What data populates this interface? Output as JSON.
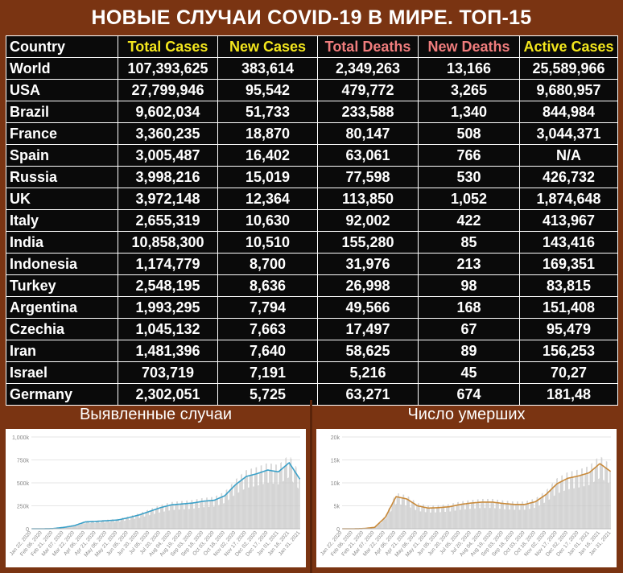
{
  "title": "НОВЫЕ СЛУЧАИ COVID-19 В МИРЕ. ТОП-15",
  "headers": [
    "Country",
    "Total Cases",
    "New Cases",
    "Total Deaths",
    "New Deaths",
    "Active Cases"
  ],
  "header_colors": [
    "#ffffff",
    "#f3e61d",
    "#f3e61d",
    "#f07d7d",
    "#f07d7d",
    "#f3e61d"
  ],
  "rows": [
    [
      "World",
      "107,393,625",
      "383,614",
      "2,349,263",
      "13,166",
      "25,589,966"
    ],
    [
      "USA",
      "27,799,946",
      "95,542",
      "479,772",
      "3,265",
      "9,680,957"
    ],
    [
      "Brazil",
      "9,602,034",
      "51,733",
      "233,588",
      "1,340",
      "844,984"
    ],
    [
      "France",
      "3,360,235",
      "18,870",
      "80,147",
      "508",
      "3,044,371"
    ],
    [
      "Spain",
      "3,005,487",
      "16,402",
      "63,061",
      "766",
      "N/A"
    ],
    [
      "Russia",
      "3,998,216",
      "15,019",
      "77,598",
      "530",
      "426,732"
    ],
    [
      "UK",
      "3,972,148",
      "12,364",
      "113,850",
      "1,052",
      "1,874,648"
    ],
    [
      "Italy",
      "2,655,319",
      "10,630",
      "92,002",
      "422",
      "413,967"
    ],
    [
      "India",
      "10,858,300",
      "10,510",
      "155,280",
      "85",
      "143,416"
    ],
    [
      "Indonesia",
      "1,174,779",
      "8,700",
      "31,976",
      "213",
      "169,351"
    ],
    [
      "Turkey",
      "2,548,195",
      "8,636",
      "26,998",
      "98",
      "83,815"
    ],
    [
      "Argentina",
      "1,993,295",
      "7,794",
      "49,566",
      "168",
      "151,408"
    ],
    [
      "Czechia",
      "1,045,132",
      "7,663",
      "17,497",
      "67",
      "95,479"
    ],
    [
      "Iran",
      "1,481,396",
      "7,640",
      "58,625",
      "89",
      "156,253"
    ],
    [
      "Israel",
      "703,719",
      "7,191",
      "5,216",
      "45",
      "70,27"
    ],
    [
      "Germany",
      "2,302,051",
      "5,725",
      "63,271",
      "674",
      "181,48"
    ]
  ],
  "panels": {
    "cases_title": "Выявленные случаи",
    "deaths_title": "Число умерших"
  },
  "colors": {
    "background": "#7a3412",
    "table_bg": "#0a0a0a",
    "cases_line": "#3aa0c8",
    "deaths_line": "#c98a3a",
    "bars": "#c8c8c8"
  },
  "chart_data": [
    {
      "type": "bar",
      "title": "Выявленные случаи",
      "ylim": [
        0,
        1000000
      ],
      "yticks": [
        "0",
        "250k",
        "500k",
        "750k",
        "1,000k"
      ],
      "xticks": [
        "Jan 22, 2020",
        "Feb 06, 2020",
        "Feb 21, 2020",
        "Mar 07, 2020",
        "Mar 22, 2020",
        "Apr 06, 2020",
        "Apr 21, 2020",
        "May 06, 2020",
        "May 21, 2020",
        "Jun 05, 2020",
        "Jun 20, 2020",
        "Jul 05, 2020",
        "Jul 20, 2020",
        "Aug 04, 2020",
        "Aug 19, 2020",
        "Sep 03, 2020",
        "Sep 18, 2020",
        "Oct 03, 2020",
        "Oct 18, 2020",
        "Nov 02, 2020",
        "Nov 17, 2020",
        "Dec 02, 2020",
        "Dec 17, 2020",
        "Jan 01, 2021",
        "Jan 16, 2021",
        "Jan 31, 2021"
      ],
      "series": [
        {
          "values": [
            0,
            0,
            2000,
            15000,
            35000,
            75000,
            80000,
            88000,
            95000,
            120000,
            150000,
            190000,
            230000,
            260000,
            270000,
            280000,
            300000,
            310000,
            360000,
            480000,
            570000,
            600000,
            640000,
            620000,
            720000,
            540000
          ]
        }
      ]
    },
    {
      "type": "bar",
      "title": "Число умерших",
      "ylim": [
        0,
        20000
      ],
      "yticks": [
        "0",
        "5k",
        "10k",
        "15k",
        "20k"
      ],
      "xticks": [
        "Jan 22, 2020",
        "Feb 06, 2020",
        "Feb 21, 2020",
        "Mar 07, 2020",
        "Mar 22, 2020",
        "Apr 06, 2020",
        "Apr 21, 2020",
        "May 06, 2020",
        "May 21, 2020",
        "Jun 05, 2020",
        "Jun 20, 2020",
        "Jul 05, 2020",
        "Jul 20, 2020",
        "Aug 04, 2020",
        "Aug 19, 2020",
        "Sep 03, 2020",
        "Sep 18, 2020",
        "Oct 03, 2020",
        "Oct 18, 2020",
        "Nov 02, 2020",
        "Nov 17, 2020",
        "Dec 02, 2020",
        "Dec 17, 2020",
        "Jan 01, 2021",
        "Jan 16, 2021",
        "Jan 31, 2021"
      ],
      "series": [
        {
          "values": [
            0,
            0,
            50,
            300,
            2500,
            7000,
            6500,
            5000,
            4500,
            4600,
            4800,
            5300,
            5600,
            5800,
            5800,
            5500,
            5300,
            5300,
            5900,
            7500,
            9800,
            11000,
            11500,
            12200,
            14200,
            12500
          ]
        }
      ]
    }
  ]
}
